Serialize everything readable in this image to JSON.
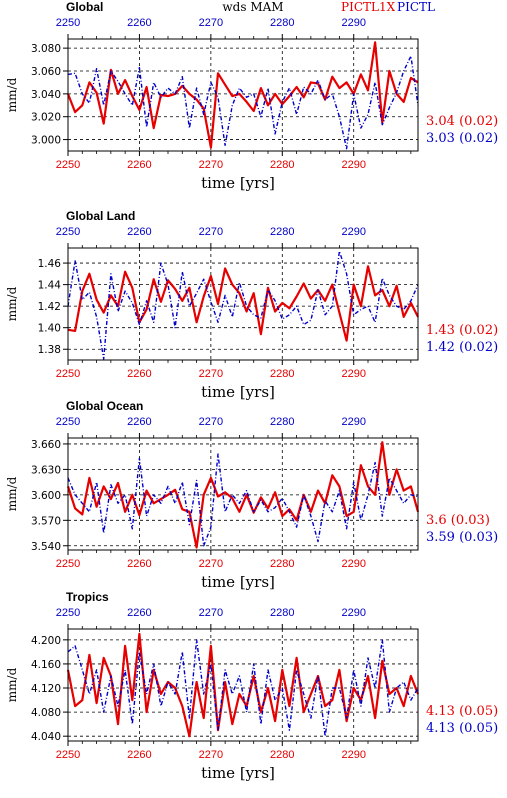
{
  "header": {
    "center": "wds  MAM",
    "label_red": "PICTL1X",
    "label_blue": "PICTL"
  },
  "colors": {
    "red": "#e60000",
    "blue": "#0000c8"
  },
  "chart_data": [
    {
      "type": "line",
      "title": "Global",
      "ylabel": "mm/d",
      "xlabel": "time [yrs]",
      "xlim": [
        2250,
        2299
      ],
      "ylim": [
        2.99,
        3.088
      ],
      "xticks": [
        2250,
        2260,
        2270,
        2280,
        2290
      ],
      "yticks": [
        3.0,
        3.02,
        3.04,
        3.06,
        3.08
      ],
      "ytick_labels": [
        "3.000",
        "3.020",
        "3.040",
        "3.060",
        "3.080"
      ],
      "x": [
        2250,
        2251,
        2252,
        2253,
        2254,
        2255,
        2256,
        2257,
        2258,
        2259,
        2260,
        2261,
        2262,
        2263,
        2264,
        2265,
        2266,
        2267,
        2268,
        2269,
        2270,
        2271,
        2272,
        2273,
        2274,
        2275,
        2276,
        2277,
        2278,
        2279,
        2280,
        2281,
        2282,
        2283,
        2284,
        2285,
        2286,
        2287,
        2288,
        2289,
        2290,
        2291,
        2292,
        2293,
        2294,
        2295,
        2296,
        2297,
        2298,
        2299
      ],
      "series": [
        {
          "name": "PICTL1X",
          "color": "red",
          "values": [
            3.04,
            3.024,
            3.03,
            3.05,
            3.041,
            3.014,
            3.061,
            3.04,
            3.052,
            3.038,
            3.026,
            3.046,
            3.01,
            3.039,
            3.038,
            3.04,
            3.047,
            3.04,
            3.035,
            3.027,
            2.993,
            3.058,
            3.048,
            3.038,
            3.04,
            3.033,
            3.025,
            3.045,
            3.03,
            3.04,
            3.031,
            3.038,
            3.046,
            3.037,
            3.05,
            3.049,
            3.035,
            3.055,
            3.045,
            3.05,
            3.04,
            3.057,
            3.043,
            3.085,
            3.015,
            3.06,
            3.04,
            3.033,
            3.054,
            3.05
          ]
        },
        {
          "name": "PICTL",
          "color": "blue",
          "values": [
            3.057,
            3.058,
            3.04,
            3.032,
            3.062,
            3.03,
            3.06,
            3.051,
            3.04,
            3.03,
            3.063,
            3.011,
            3.05,
            3.037,
            3.045,
            3.04,
            3.055,
            3.01,
            3.045,
            3.022,
            3.05,
            3.037,
            2.995,
            3.03,
            3.045,
            3.037,
            3.04,
            3.02,
            3.045,
            3.005,
            3.033,
            3.045,
            3.022,
            3.046,
            3.04,
            3.052,
            3.035,
            3.04,
            3.02,
            2.992,
            3.04,
            3.01,
            3.022,
            3.05,
            3.013,
            3.028,
            3.041,
            3.06,
            3.073,
            3.03
          ]
        }
      ],
      "stats": [
        {
          "value": "3.04 (0.02)",
          "color": "red"
        },
        {
          "value": "3.03 (0.02)",
          "color": "blue"
        }
      ]
    },
    {
      "type": "line",
      "title": "Global Land",
      "ylabel": "mm/d",
      "xlabel": "time [yrs]",
      "xlim": [
        2250,
        2299
      ],
      "ylim": [
        1.37,
        1.474
      ],
      "xticks": [
        2250,
        2260,
        2270,
        2280,
        2290
      ],
      "yticks": [
        1.38,
        1.4,
        1.42,
        1.44,
        1.46
      ],
      "ytick_labels": [
        "1.38",
        "1.40",
        "1.42",
        "1.44",
        "1.46"
      ],
      "x": [
        2250,
        2251,
        2252,
        2253,
        2254,
        2255,
        2256,
        2257,
        2258,
        2259,
        2260,
        2261,
        2262,
        2263,
        2264,
        2265,
        2266,
        2267,
        2268,
        2269,
        2270,
        2271,
        2272,
        2273,
        2274,
        2275,
        2276,
        2277,
        2278,
        2279,
        2280,
        2281,
        2282,
        2283,
        2284,
        2285,
        2286,
        2287,
        2288,
        2289,
        2290,
        2291,
        2292,
        2293,
        2294,
        2295,
        2296,
        2297,
        2298,
        2299
      ],
      "series": [
        {
          "name": "PICTL1X",
          "color": "red",
          "values": [
            1.398,
            1.397,
            1.434,
            1.45,
            1.426,
            1.414,
            1.43,
            1.42,
            1.452,
            1.437,
            1.405,
            1.417,
            1.445,
            1.424,
            1.444,
            1.436,
            1.425,
            1.437,
            1.405,
            1.429,
            1.448,
            1.422,
            1.455,
            1.44,
            1.432,
            1.415,
            1.432,
            1.394,
            1.437,
            1.415,
            1.423,
            1.418,
            1.429,
            1.441,
            1.427,
            1.435,
            1.425,
            1.44,
            1.414,
            1.388,
            1.44,
            1.42,
            1.457,
            1.43,
            1.435,
            1.42,
            1.439,
            1.41,
            1.423,
            1.41
          ]
        },
        {
          "name": "PICTL",
          "color": "blue",
          "values": [
            1.42,
            1.462,
            1.426,
            1.433,
            1.41,
            1.371,
            1.45,
            1.415,
            1.434,
            1.423,
            1.403,
            1.425,
            1.405,
            1.46,
            1.44,
            1.4,
            1.452,
            1.42,
            1.432,
            1.445,
            1.424,
            1.405,
            1.43,
            1.41,
            1.442,
            1.42,
            1.412,
            1.409,
            1.435,
            1.425,
            1.408,
            1.412,
            1.42,
            1.403,
            1.407,
            1.435,
            1.412,
            1.42,
            1.471,
            1.45,
            1.412,
            1.417,
            1.42,
            1.405,
            1.446,
            1.43,
            1.42,
            1.417,
            1.425,
            1.44
          ]
        }
      ],
      "stats": [
        {
          "value": "1.43 (0.02)",
          "color": "red"
        },
        {
          "value": "1.42 (0.02)",
          "color": "blue"
        }
      ]
    },
    {
      "type": "line",
      "title": "Global Ocean",
      "ylabel": "mm/d",
      "xlabel": "time [yrs]",
      "xlim": [
        2250,
        2299
      ],
      "ylim": [
        3.535,
        3.667
      ],
      "xticks": [
        2250,
        2260,
        2270,
        2280,
        2290
      ],
      "yticks": [
        3.54,
        3.57,
        3.6,
        3.63,
        3.66
      ],
      "ytick_labels": [
        "3.540",
        "3.570",
        "3.600",
        "3.630",
        "3.660"
      ],
      "x": [
        2250,
        2251,
        2252,
        2253,
        2254,
        2255,
        2256,
        2257,
        2258,
        2259,
        2260,
        2261,
        2262,
        2263,
        2264,
        2265,
        2266,
        2267,
        2268,
        2269,
        2270,
        2271,
        2272,
        2273,
        2274,
        2275,
        2276,
        2277,
        2278,
        2279,
        2280,
        2281,
        2282,
        2283,
        2284,
        2285,
        2286,
        2287,
        2288,
        2289,
        2290,
        2291,
        2292,
        2293,
        2294,
        2295,
        2296,
        2297,
        2298,
        2299
      ],
      "series": [
        {
          "name": "PICTL1X",
          "color": "red",
          "values": [
            3.61,
            3.584,
            3.577,
            3.62,
            3.586,
            3.61,
            3.595,
            3.614,
            3.58,
            3.6,
            3.576,
            3.605,
            3.59,
            3.595,
            3.6,
            3.606,
            3.583,
            3.58,
            3.538,
            3.6,
            3.62,
            3.598,
            3.603,
            3.596,
            3.58,
            3.6,
            3.579,
            3.597,
            3.584,
            3.603,
            3.575,
            3.583,
            3.57,
            3.6,
            3.58,
            3.605,
            3.59,
            3.623,
            3.61,
            3.575,
            3.58,
            3.635,
            3.61,
            3.6,
            3.662,
            3.6,
            3.63,
            3.605,
            3.61,
            3.58
          ]
        },
        {
          "name": "PICTL",
          "color": "blue",
          "values": [
            3.62,
            3.6,
            3.59,
            3.58,
            3.615,
            3.555,
            3.612,
            3.59,
            3.6,
            3.56,
            3.643,
            3.575,
            3.6,
            3.59,
            3.61,
            3.59,
            3.615,
            3.565,
            3.617,
            3.54,
            3.562,
            3.648,
            3.58,
            3.6,
            3.59,
            3.605,
            3.58,
            3.594,
            3.58,
            3.585,
            3.596,
            3.58,
            3.562,
            3.6,
            3.575,
            3.545,
            3.593,
            3.58,
            3.605,
            3.56,
            3.615,
            3.57,
            3.6,
            3.638,
            3.575,
            3.62,
            3.605,
            3.59,
            3.6,
            3.598
          ]
        }
      ],
      "stats": [
        {
          "value": "3.6 (0.03)",
          "color": "red"
        },
        {
          "value": "3.59 (0.03)",
          "color": "blue"
        }
      ]
    },
    {
      "type": "line",
      "title": "Tropics",
      "ylabel": "mm/d",
      "xlabel": "time [yrs]",
      "xlim": [
        2250,
        2299
      ],
      "ylim": [
        4.032,
        4.218
      ],
      "xticks": [
        2250,
        2260,
        2270,
        2280,
        2290
      ],
      "yticks": [
        4.04,
        4.08,
        4.12,
        4.16,
        4.2
      ],
      "ytick_labels": [
        "4.040",
        "4.080",
        "4.120",
        "4.160",
        "4.200"
      ],
      "x": [
        2250,
        2251,
        2252,
        2253,
        2254,
        2255,
        2256,
        2257,
        2258,
        2259,
        2260,
        2261,
        2262,
        2263,
        2264,
        2265,
        2266,
        2267,
        2268,
        2269,
        2270,
        2271,
        2272,
        2273,
        2274,
        2275,
        2276,
        2277,
        2278,
        2279,
        2280,
        2281,
        2282,
        2283,
        2284,
        2285,
        2286,
        2287,
        2288,
        2289,
        2290,
        2291,
        2292,
        2293,
        2294,
        2295,
        2296,
        2297,
        2298,
        2299
      ],
      "series": [
        {
          "name": "PICTL1X",
          "color": "red",
          "values": [
            4.15,
            4.09,
            4.1,
            4.175,
            4.095,
            4.17,
            4.14,
            4.06,
            4.19,
            4.1,
            4.21,
            4.08,
            4.15,
            4.11,
            4.13,
            4.12,
            4.09,
            4.04,
            4.13,
            4.07,
            4.19,
            4.05,
            4.13,
            4.06,
            4.11,
            4.09,
            4.14,
            4.08,
            4.12,
            4.065,
            4.15,
            4.09,
            4.17,
            4.08,
            4.11,
            4.14,
            4.09,
            4.1,
            4.15,
            4.065,
            4.12,
            4.1,
            4.14,
            4.07,
            4.165,
            4.11,
            4.12,
            4.09,
            4.14,
            4.11
          ]
        },
        {
          "name": "PICTL",
          "color": "blue",
          "values": [
            4.18,
            4.19,
            4.15,
            4.11,
            4.15,
            4.08,
            4.14,
            4.09,
            4.15,
            4.06,
            4.18,
            4.11,
            4.16,
            4.09,
            4.13,
            4.11,
            4.18,
            4.07,
            4.2,
            4.11,
            4.16,
            4.05,
            4.15,
            4.11,
            4.14,
            4.08,
            4.16,
            4.06,
            4.15,
            4.1,
            4.12,
            4.05,
            4.15,
            4.11,
            4.07,
            4.14,
            4.04,
            4.12,
            4.12,
            4.07,
            4.15,
            4.09,
            4.17,
            4.12,
            4.2,
            4.08,
            4.12,
            4.13,
            4.1,
            4.12
          ]
        }
      ],
      "stats": [
        {
          "value": "4.13 (0.05)",
          "color": "red"
        },
        {
          "value": "4.13 (0.05)",
          "color": "blue"
        }
      ]
    }
  ]
}
